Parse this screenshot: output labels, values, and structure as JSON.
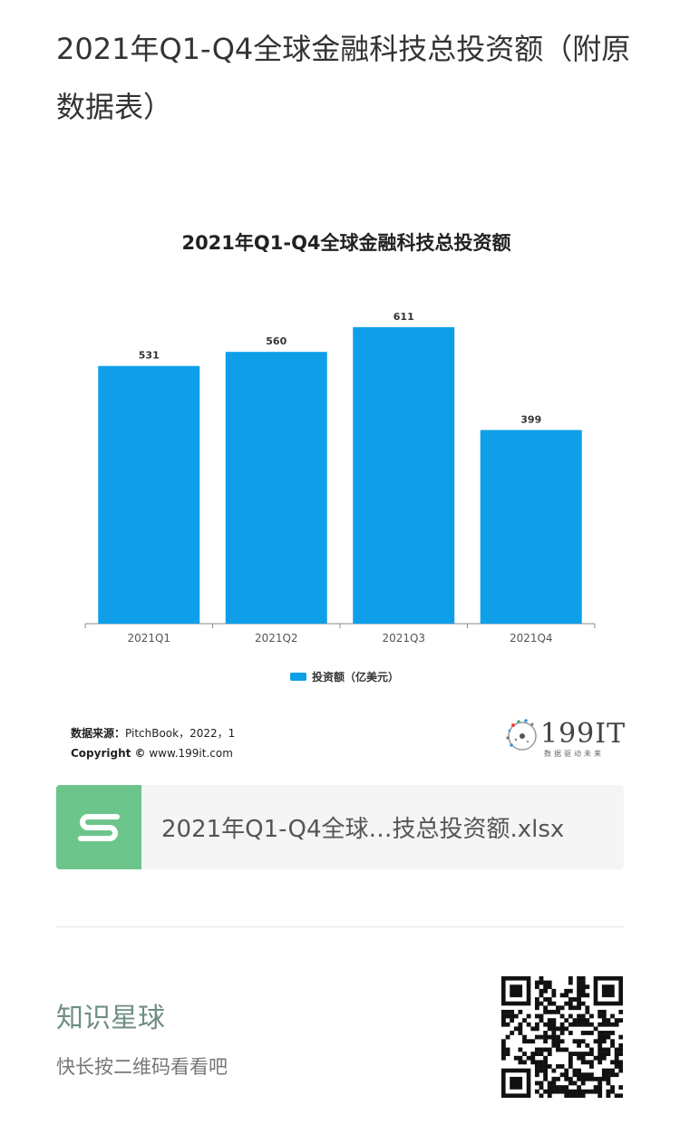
{
  "post": {
    "title": "2021年Q1-Q4全球金融科技总投资额（附原数据表）"
  },
  "chart": {
    "source_label": "数据来源：",
    "source_value": "PitchBook，2022，1",
    "copyright_label": "Copyright ©",
    "copyright_value": " www.199it.com",
    "logo_text": "199IT",
    "logo_tagline": "数据驱动未来"
  },
  "chart_data": {
    "type": "bar",
    "title": "2021年Q1-Q4全球金融科技总投资额",
    "categories": [
      "2021Q1",
      "2021Q2",
      "2021Q3",
      "2021Q4"
    ],
    "values": [
      531,
      560,
      611,
      399
    ],
    "series": [
      {
        "name": "投资额（亿美元）",
        "values": [
          531,
          560,
          611,
          399
        ]
      }
    ],
    "xlabel": "",
    "ylabel": "",
    "ylim": [
      0,
      650
    ],
    "grid": false,
    "legend": "bottom",
    "colors": {
      "bar": "#0E9FE8"
    }
  },
  "attachment": {
    "icon": "spreadsheet-s-icon",
    "filename": "2021年Q1-Q4全球…技总投资额.xlsx",
    "icon_color": "#6CC58A"
  },
  "footer": {
    "planet_name": "知识星球",
    "hint": "快长按二维码看看吧",
    "qr_icon": "qr-code-icon"
  }
}
